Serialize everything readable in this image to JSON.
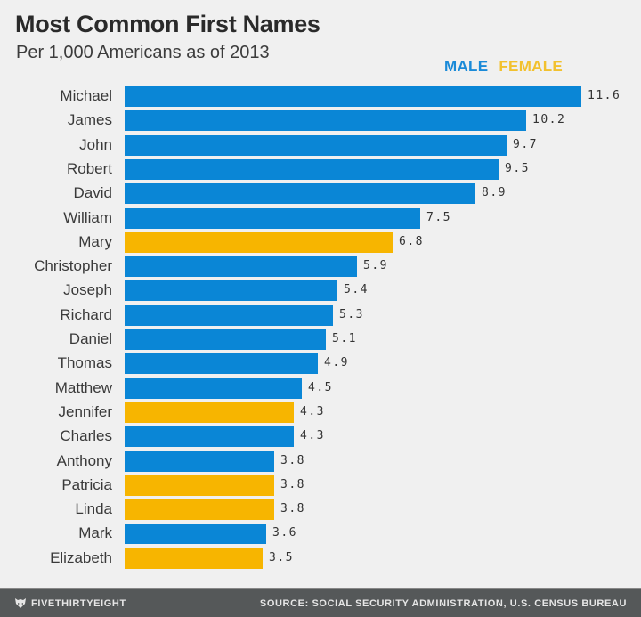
{
  "header": {
    "title": "Most Common First Names",
    "subtitle": "Per 1,000 Americans as of 2013"
  },
  "legend": {
    "male_label": "MALE",
    "female_label": "FEMALE"
  },
  "colors": {
    "male": "#0a86d6",
    "female": "#f7b500",
    "background": "#f0f0f0",
    "footer": "#555859"
  },
  "footer": {
    "brand": "FIVETHIRTYEIGHT",
    "source": "SOURCE: SOCIAL SECURITY ADMINISTRATION, U.S. CENSUS BUREAU"
  },
  "chart_data": {
    "type": "bar",
    "orientation": "horizontal",
    "title": "Most Common First Names",
    "subtitle": "Per 1,000 Americans as of 2013",
    "xlabel": "",
    "ylabel": "",
    "grid": false,
    "legend": {
      "position": "top-right",
      "entries": [
        "MALE",
        "FEMALE"
      ]
    },
    "categories": [
      "Michael",
      "James",
      "John",
      "Robert",
      "David",
      "William",
      "Mary",
      "Christopher",
      "Joseph",
      "Richard",
      "Daniel",
      "Thomas",
      "Matthew",
      "Jennifer",
      "Charles",
      "Anthony",
      "Patricia",
      "Linda",
      "Mark",
      "Elizabeth"
    ],
    "values": [
      11.6,
      10.2,
      9.7,
      9.5,
      8.9,
      7.5,
      6.8,
      5.9,
      5.4,
      5.3,
      5.1,
      4.9,
      4.5,
      4.3,
      4.3,
      3.8,
      3.8,
      3.8,
      3.6,
      3.5
    ],
    "value_labels": [
      "11.6",
      "10.2",
      "9.7",
      "9.5",
      "8.9",
      "7.5",
      "6.8",
      "5.9",
      "5.4",
      "5.3",
      "5.1",
      "4.9",
      "4.5",
      "4.3",
      "4.3",
      "3.8",
      "3.8",
      "3.8",
      "3.6",
      "3.5"
    ],
    "gender": [
      "male",
      "male",
      "male",
      "male",
      "male",
      "male",
      "female",
      "male",
      "male",
      "male",
      "male",
      "male",
      "male",
      "female",
      "male",
      "male",
      "female",
      "female",
      "male",
      "female"
    ],
    "series": [
      {
        "name": "MALE",
        "color": "#0a86d6",
        "values": [
          11.6,
          10.2,
          9.7,
          9.5,
          8.9,
          7.5,
          null,
          5.9,
          5.4,
          5.3,
          5.1,
          4.9,
          4.5,
          null,
          4.3,
          3.8,
          null,
          null,
          3.6,
          null
        ]
      },
      {
        "name": "FEMALE",
        "color": "#f7b500",
        "values": [
          null,
          null,
          null,
          null,
          null,
          null,
          6.8,
          null,
          null,
          null,
          null,
          null,
          null,
          4.3,
          null,
          null,
          3.8,
          3.8,
          null,
          3.5
        ]
      }
    ],
    "xlim": [
      0,
      11.6
    ]
  }
}
